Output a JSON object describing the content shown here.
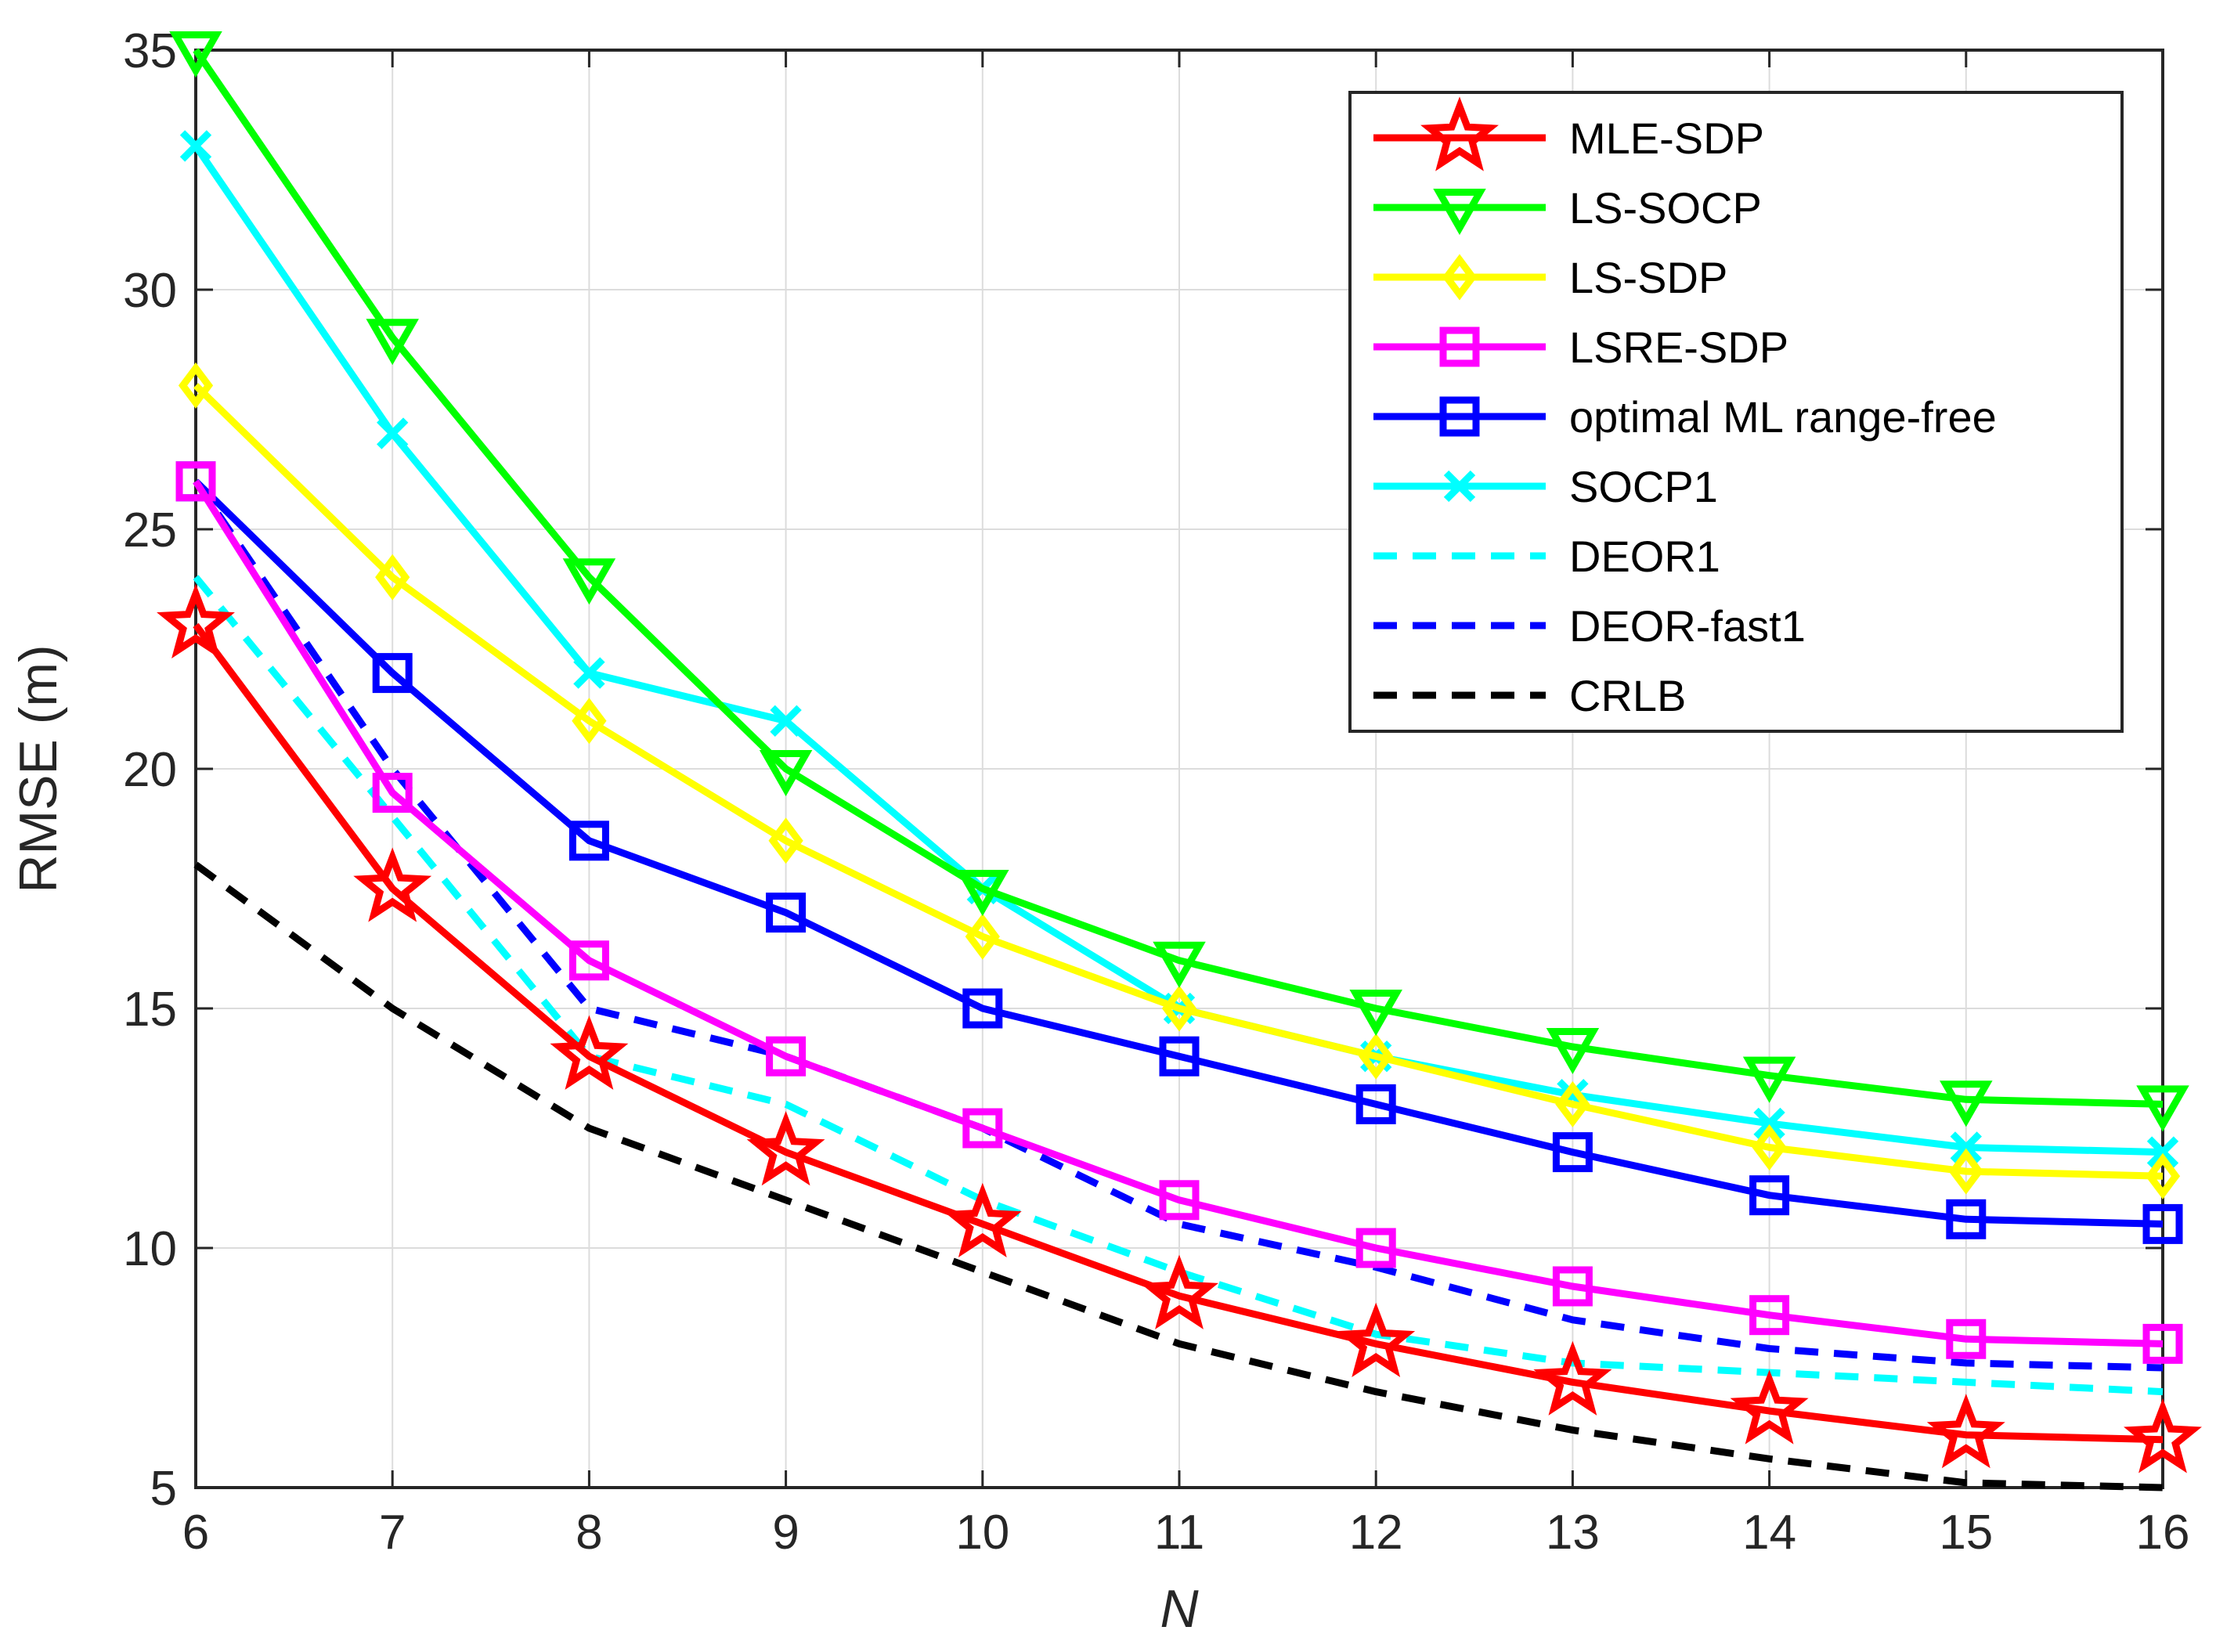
{
  "chart_data": {
    "type": "line",
    "title": "",
    "xlabel": "N",
    "ylabel": "RMSE (m)",
    "x": [
      6,
      7,
      8,
      9,
      10,
      11,
      12,
      13,
      14,
      15,
      16
    ],
    "xlim": [
      6,
      16
    ],
    "ylim": [
      5,
      35
    ],
    "xticks": [
      "6",
      "7",
      "8",
      "9",
      "10",
      "11",
      "12",
      "13",
      "14",
      "15",
      "16"
    ],
    "yticks": [
      "5",
      "10",
      "15",
      "20",
      "25",
      "30",
      "35"
    ],
    "grid": true,
    "legend_position": "top-right",
    "series": [
      {
        "name": "MLE-SDP",
        "color": "#ff0000",
        "line": "solid",
        "marker": "star",
        "values": [
          23,
          17.5,
          14,
          12,
          10.5,
          9,
          8,
          7.2,
          6.6,
          6.1,
          6
        ]
      },
      {
        "name": "LS-SOCP",
        "color": "#00ff00",
        "line": "solid",
        "marker": "triangle-down",
        "values": [
          35,
          29,
          24,
          20,
          17.5,
          16,
          15,
          14.2,
          13.6,
          13.1,
          13
        ]
      },
      {
        "name": "LS-SDP",
        "color": "#ffff00",
        "line": "solid",
        "marker": "diamond",
        "values": [
          28,
          24,
          21,
          18.5,
          16.5,
          15,
          14,
          13,
          12.1,
          11.6,
          11.5
        ]
      },
      {
        "name": "LSRE-SDP",
        "color": "#ff00ff",
        "line": "solid",
        "marker": "square",
        "values": [
          26,
          19.5,
          16,
          14,
          12.5,
          11,
          10,
          9.2,
          8.6,
          8.1,
          8
        ]
      },
      {
        "name": "optimal ML range-free",
        "color": "#0000ff",
        "line": "solid",
        "marker": "square",
        "values": [
          26,
          22,
          18.5,
          17,
          15,
          14,
          13,
          12,
          11.1,
          10.6,
          10.5
        ]
      },
      {
        "name": "SOCP1",
        "color": "#00ffff",
        "line": "solid",
        "marker": "x",
        "values": [
          33,
          27,
          22,
          21,
          17.5,
          15,
          14,
          13.2,
          12.6,
          12.1,
          12
        ]
      },
      {
        "name": "DEOR1",
        "color": "#00ffff",
        "line": "dashed",
        "marker": "none",
        "values": [
          24,
          19,
          14,
          13,
          11,
          9.5,
          8.2,
          7.6,
          7.4,
          7.2,
          7
        ]
      },
      {
        "name": "DEOR-fast1",
        "color": "#0000ff",
        "line": "dashed",
        "marker": "none",
        "values": [
          26,
          20,
          15,
          14,
          12.5,
          10.5,
          9.6,
          8.5,
          7.9,
          7.6,
          7.5
        ]
      },
      {
        "name": "CRLB",
        "color": "#000000",
        "line": "dashed",
        "marker": "none",
        "values": [
          18,
          15,
          12.5,
          11,
          9.5,
          8,
          7,
          6.2,
          5.6,
          5.1,
          5
        ]
      }
    ]
  }
}
